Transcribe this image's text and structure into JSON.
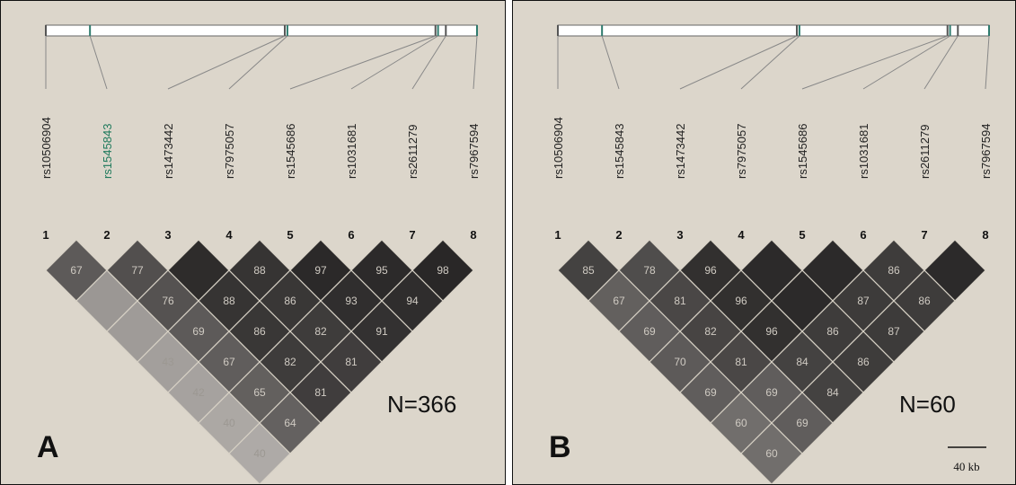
{
  "panels": [
    {
      "id": "A",
      "panel_label": "A",
      "sample_label": "N=366",
      "scale_label": "",
      "highlight_snp_index": 1,
      "snp_names": [
        "rs10506904",
        "rs1545843",
        "rs1473442",
        "rs7975057",
        "rs1545686",
        "rs1031681",
        "rs2611279",
        "rs7967594"
      ],
      "snp_numbers": [
        "1",
        "2",
        "3",
        "4",
        "5",
        "6",
        "7",
        "8"
      ],
      "snp_positions_kb": [
        0,
        17,
        92,
        93,
        150,
        151,
        154,
        166
      ],
      "ld_values": [
        [
          67,
          77,
          null,
          88,
          97,
          95,
          98
        ],
        [
          null,
          76,
          88,
          86,
          93,
          94
        ],
        [
          null,
          69,
          86,
          82,
          91
        ],
        [
          43,
          67,
          82,
          81
        ],
        [
          42,
          65,
          81
        ],
        [
          40,
          64
        ],
        [
          40
        ]
      ],
      "ld_shade": [
        [
          0.62,
          0.7,
          0.96,
          0.9,
          0.98,
          0.97,
          0.99
        ],
        [
          0.18,
          0.68,
          0.9,
          0.88,
          0.94,
          0.95
        ],
        [
          0.15,
          0.62,
          0.88,
          0.84,
          0.92
        ],
        [
          0.12,
          0.6,
          0.84,
          0.83
        ],
        [
          0.1,
          0.58,
          0.83
        ],
        [
          0.06,
          0.57
        ],
        [
          0.04
        ]
      ]
    },
    {
      "id": "B",
      "panel_label": "B",
      "sample_label": "N=60",
      "scale_label": "40 kb",
      "highlight_snp_index": -1,
      "snp_names": [
        "rs10506904",
        "rs1545843",
        "rs1473442",
        "rs7975057",
        "rs1545686",
        "rs1031681",
        "rs2611279",
        "rs7967594"
      ],
      "snp_numbers": [
        "1",
        "2",
        "3",
        "4",
        "5",
        "6",
        "7",
        "8"
      ],
      "snp_positions_kb": [
        0,
        17,
        92,
        93,
        150,
        151,
        154,
        166
      ],
      "ld_values": [
        [
          85,
          78,
          96,
          null,
          null,
          86,
          null
        ],
        [
          67,
          81,
          96,
          null,
          87,
          86
        ],
        [
          69,
          82,
          96,
          86,
          87
        ],
        [
          70,
          81,
          84,
          86
        ],
        [
          69,
          69,
          84
        ],
        [
          60,
          69
        ],
        [
          60
        ]
      ],
      "ld_shade": [
        [
          0.8,
          0.72,
          0.93,
          0.97,
          0.97,
          0.84,
          0.97
        ],
        [
          0.58,
          0.76,
          0.93,
          0.97,
          0.85,
          0.84
        ],
        [
          0.6,
          0.78,
          0.93,
          0.84,
          0.85
        ],
        [
          0.62,
          0.76,
          0.8,
          0.84
        ],
        [
          0.6,
          0.6,
          0.8
        ],
        [
          0.48,
          0.6
        ],
        [
          0.48
        ]
      ]
    }
  ]
}
